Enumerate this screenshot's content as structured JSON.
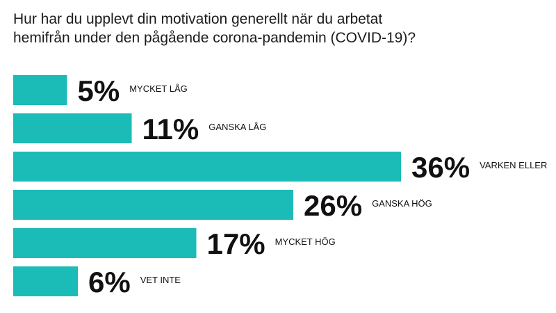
{
  "title": {
    "line1": "Hur har du upplevt din motivation generellt när du arbetat",
    "line2": "hemifrån under den pågående corona-pandemin (COVID-19)?"
  },
  "colors": {
    "bar": "#1bbbb7",
    "text": "#111111"
  },
  "chart_data": {
    "type": "bar",
    "orientation": "horizontal",
    "title": "Hur har du upplevt din motivation generellt när du arbetat hemifrån under den pågående corona-pandemin (COVID-19)?",
    "unit": "%",
    "categories": [
      "MYCKET LÅG",
      "GANSKA LÅG",
      "VARKEN ELLER",
      "GANSKA HÖG",
      "MYCKET HÖG",
      "VET INTE"
    ],
    "values": [
      5,
      11,
      36,
      26,
      17,
      6
    ],
    "value_labels": [
      "5%",
      "11%",
      "36%",
      "26%",
      "17%",
      "6%"
    ],
    "xlim": [
      0,
      36
    ]
  }
}
